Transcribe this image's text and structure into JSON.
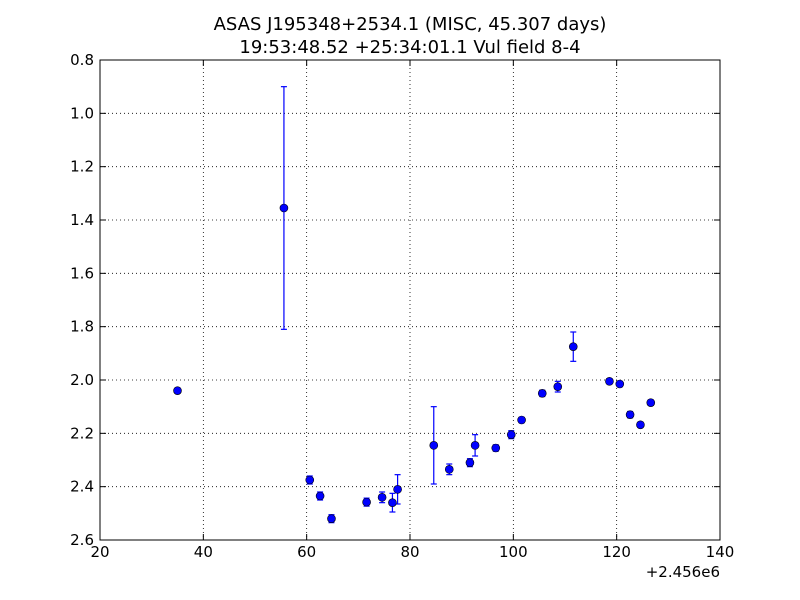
{
  "chart_data": {
    "type": "scatter",
    "title": "ASAS J195348+2534.1 (MISC, 45.307 days)",
    "subtitle": "19:53:48.52 +25:34:01.1 Vul field 8-4",
    "xlabel": "",
    "ylabel": "",
    "x_offset_label": "+2.456e6",
    "xlim": [
      20,
      140
    ],
    "ylim": [
      2.6,
      0.8
    ],
    "y_inverted": true,
    "grid": true,
    "x_ticks": [
      "20",
      "40",
      "60",
      "80",
      "100",
      "120",
      "140"
    ],
    "y_ticks": [
      "0.8",
      "1.0",
      "1.2",
      "1.4",
      "1.6",
      "1.8",
      "2.0",
      "2.2",
      "2.4",
      "2.6"
    ],
    "colors": {
      "points": "#0000ff",
      "errorbars": "#0000ff"
    },
    "points": [
      {
        "x": 35.0,
        "y": 2.04,
        "err": 0.01
      },
      {
        "x": 55.6,
        "y": 1.355,
        "err": 0.455
      },
      {
        "x": 60.6,
        "y": 2.375,
        "err": 0.015
      },
      {
        "x": 62.6,
        "y": 2.435,
        "err": 0.015
      },
      {
        "x": 64.8,
        "y": 2.52,
        "err": 0.015
      },
      {
        "x": 71.6,
        "y": 2.458,
        "err": 0.015
      },
      {
        "x": 74.6,
        "y": 2.44,
        "err": 0.02
      },
      {
        "x": 76.6,
        "y": 2.46,
        "err": 0.035
      },
      {
        "x": 77.6,
        "y": 2.41,
        "err": 0.055
      },
      {
        "x": 84.6,
        "y": 2.245,
        "err": 0.145
      },
      {
        "x": 87.6,
        "y": 2.335,
        "err": 0.02
      },
      {
        "x": 91.6,
        "y": 2.31,
        "err": 0.015
      },
      {
        "x": 92.6,
        "y": 2.245,
        "err": 0.04
      },
      {
        "x": 96.6,
        "y": 2.255,
        "err": 0.012
      },
      {
        "x": 99.6,
        "y": 2.205,
        "err": 0.015
      },
      {
        "x": 101.6,
        "y": 2.15,
        "err": 0.01
      },
      {
        "x": 105.6,
        "y": 2.05,
        "err": 0.012
      },
      {
        "x": 108.6,
        "y": 2.025,
        "err": 0.02
      },
      {
        "x": 111.6,
        "y": 1.875,
        "err": 0.055
      },
      {
        "x": 118.6,
        "y": 2.005,
        "err": 0.01
      },
      {
        "x": 120.6,
        "y": 2.015,
        "err": 0.01
      },
      {
        "x": 122.6,
        "y": 2.13,
        "err": 0.012
      },
      {
        "x": 124.6,
        "y": 2.168,
        "err": 0.01
      },
      {
        "x": 126.6,
        "y": 2.085,
        "err": 0.01
      }
    ]
  }
}
